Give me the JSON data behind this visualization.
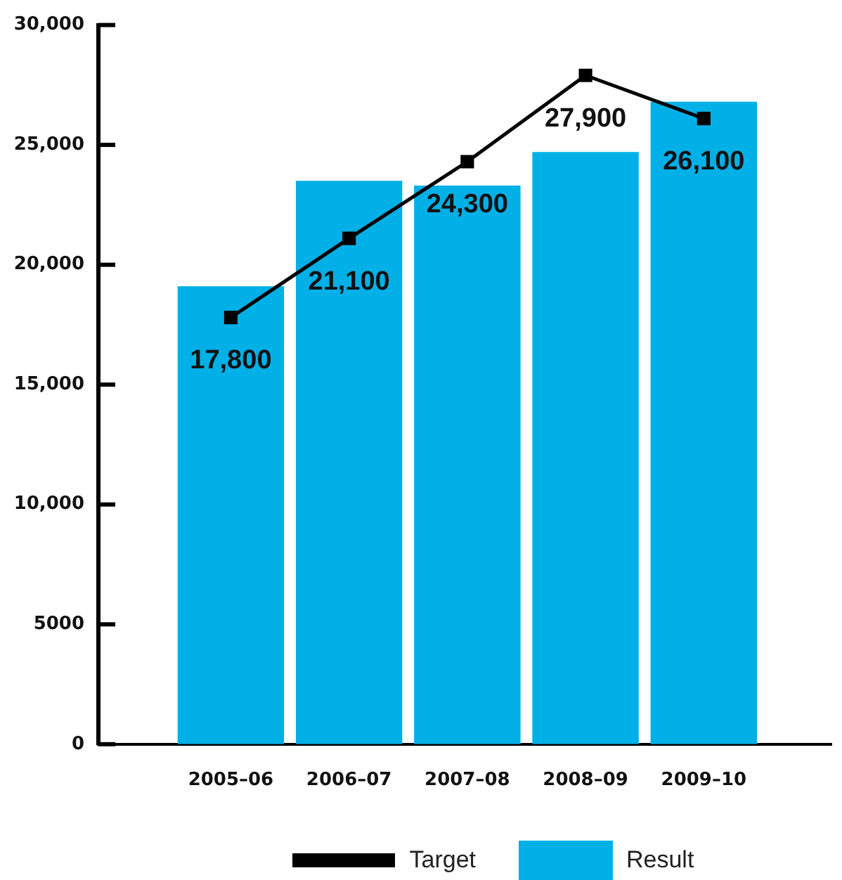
{
  "chart_data": {
    "type": "bar",
    "categories": [
      "2005–06",
      "2006–07",
      "2007–08",
      "2008–09",
      "2009–10"
    ],
    "series": [
      {
        "name": "Target",
        "type": "line",
        "color": "#000000",
        "values": [
          17800,
          21100,
          24300,
          27900,
          26100
        ],
        "value_labels": [
          "17,800",
          "21,100",
          "24,300",
          "27,900",
          "26,100"
        ]
      },
      {
        "name": "Result",
        "color": "#00b0e6",
        "values": [
          19100,
          23500,
          23300,
          24700,
          26800
        ]
      }
    ],
    "ylim": [
      0,
      30000
    ],
    "yticks": [
      0,
      5000,
      {
        "value": 10000,
        "label": "10,000"
      },
      {
        "value": 15000,
        "label": "15,000"
      },
      {
        "value": 20000,
        "label": "20,000"
      },
      {
        "value": 25000,
        "label": "25,000"
      },
      {
        "value": 30000,
        "label": "30,000"
      }
    ],
    "legend": "bottom",
    "marker": "square"
  }
}
